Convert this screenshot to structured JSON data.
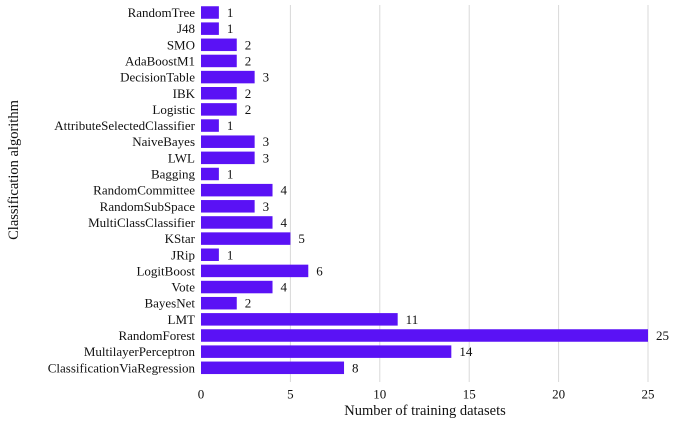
{
  "chart_data": {
    "type": "bar",
    "orientation": "horizontal",
    "categories": [
      "RandomTree",
      "J48",
      "SMO",
      "AdaBoostM1",
      "DecisionTable",
      "IBK",
      "Logistic",
      "AttributeSelectedClassifier",
      "NaiveBayes",
      "LWL",
      "Bagging",
      "RandomCommittee",
      "RandomSubSpace",
      "MultiClassClassifier",
      "KStar",
      "JRip",
      "LogitBoost",
      "Vote",
      "BayesNet",
      "LMT",
      "RandomForest",
      "MultilayerPerceptron",
      "ClassificationViaRegression"
    ],
    "values": [
      1,
      1,
      2,
      2,
      3,
      2,
      2,
      1,
      3,
      3,
      1,
      4,
      3,
      4,
      5,
      1,
      6,
      4,
      2,
      11,
      25,
      14,
      8
    ],
    "xlabel": "Number of training datasets",
    "ylabel": "Classification algorithm",
    "xlim": [
      0,
      27
    ],
    "xticks": [
      0,
      5,
      10,
      15,
      20,
      25
    ],
    "grid": "vertical",
    "bar_color": "#5a12f5",
    "grid_color": "#d9d9d9",
    "data_labels": true,
    "legend": "none"
  }
}
